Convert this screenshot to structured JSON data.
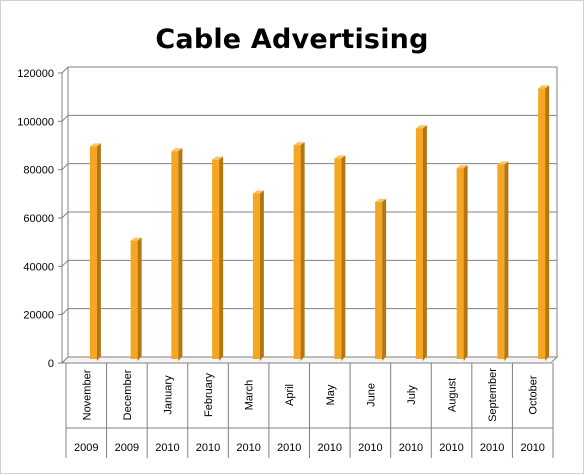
{
  "chart_data": {
    "type": "bar",
    "title": "Cable Advertising",
    "categories": [
      {
        "month": "November",
        "year": "2009"
      },
      {
        "month": "December",
        "year": "2009"
      },
      {
        "month": "January",
        "year": "2010"
      },
      {
        "month": "February",
        "year": "2010"
      },
      {
        "month": "March",
        "year": "2010"
      },
      {
        "month": "April",
        "year": "2010"
      },
      {
        "month": "May",
        "year": "2010"
      },
      {
        "month": "June",
        "year": "2010"
      },
      {
        "month": "July",
        "year": "2010"
      },
      {
        "month": "August",
        "year": "2010"
      },
      {
        "month": "September",
        "year": "2010"
      },
      {
        "month": "October",
        "year": "2010"
      }
    ],
    "values": [
      88000,
      49000,
      86000,
      82500,
      68500,
      88500,
      83000,
      65000,
      95500,
      79000,
      80500,
      112000
    ],
    "ylim": [
      0,
      120000
    ],
    "yticks": [
      0,
      20000,
      40000,
      60000,
      80000,
      100000,
      120000
    ],
    "grid": true,
    "bar_color": "#F5A623",
    "bar_dark_color": "#B5760F"
  }
}
